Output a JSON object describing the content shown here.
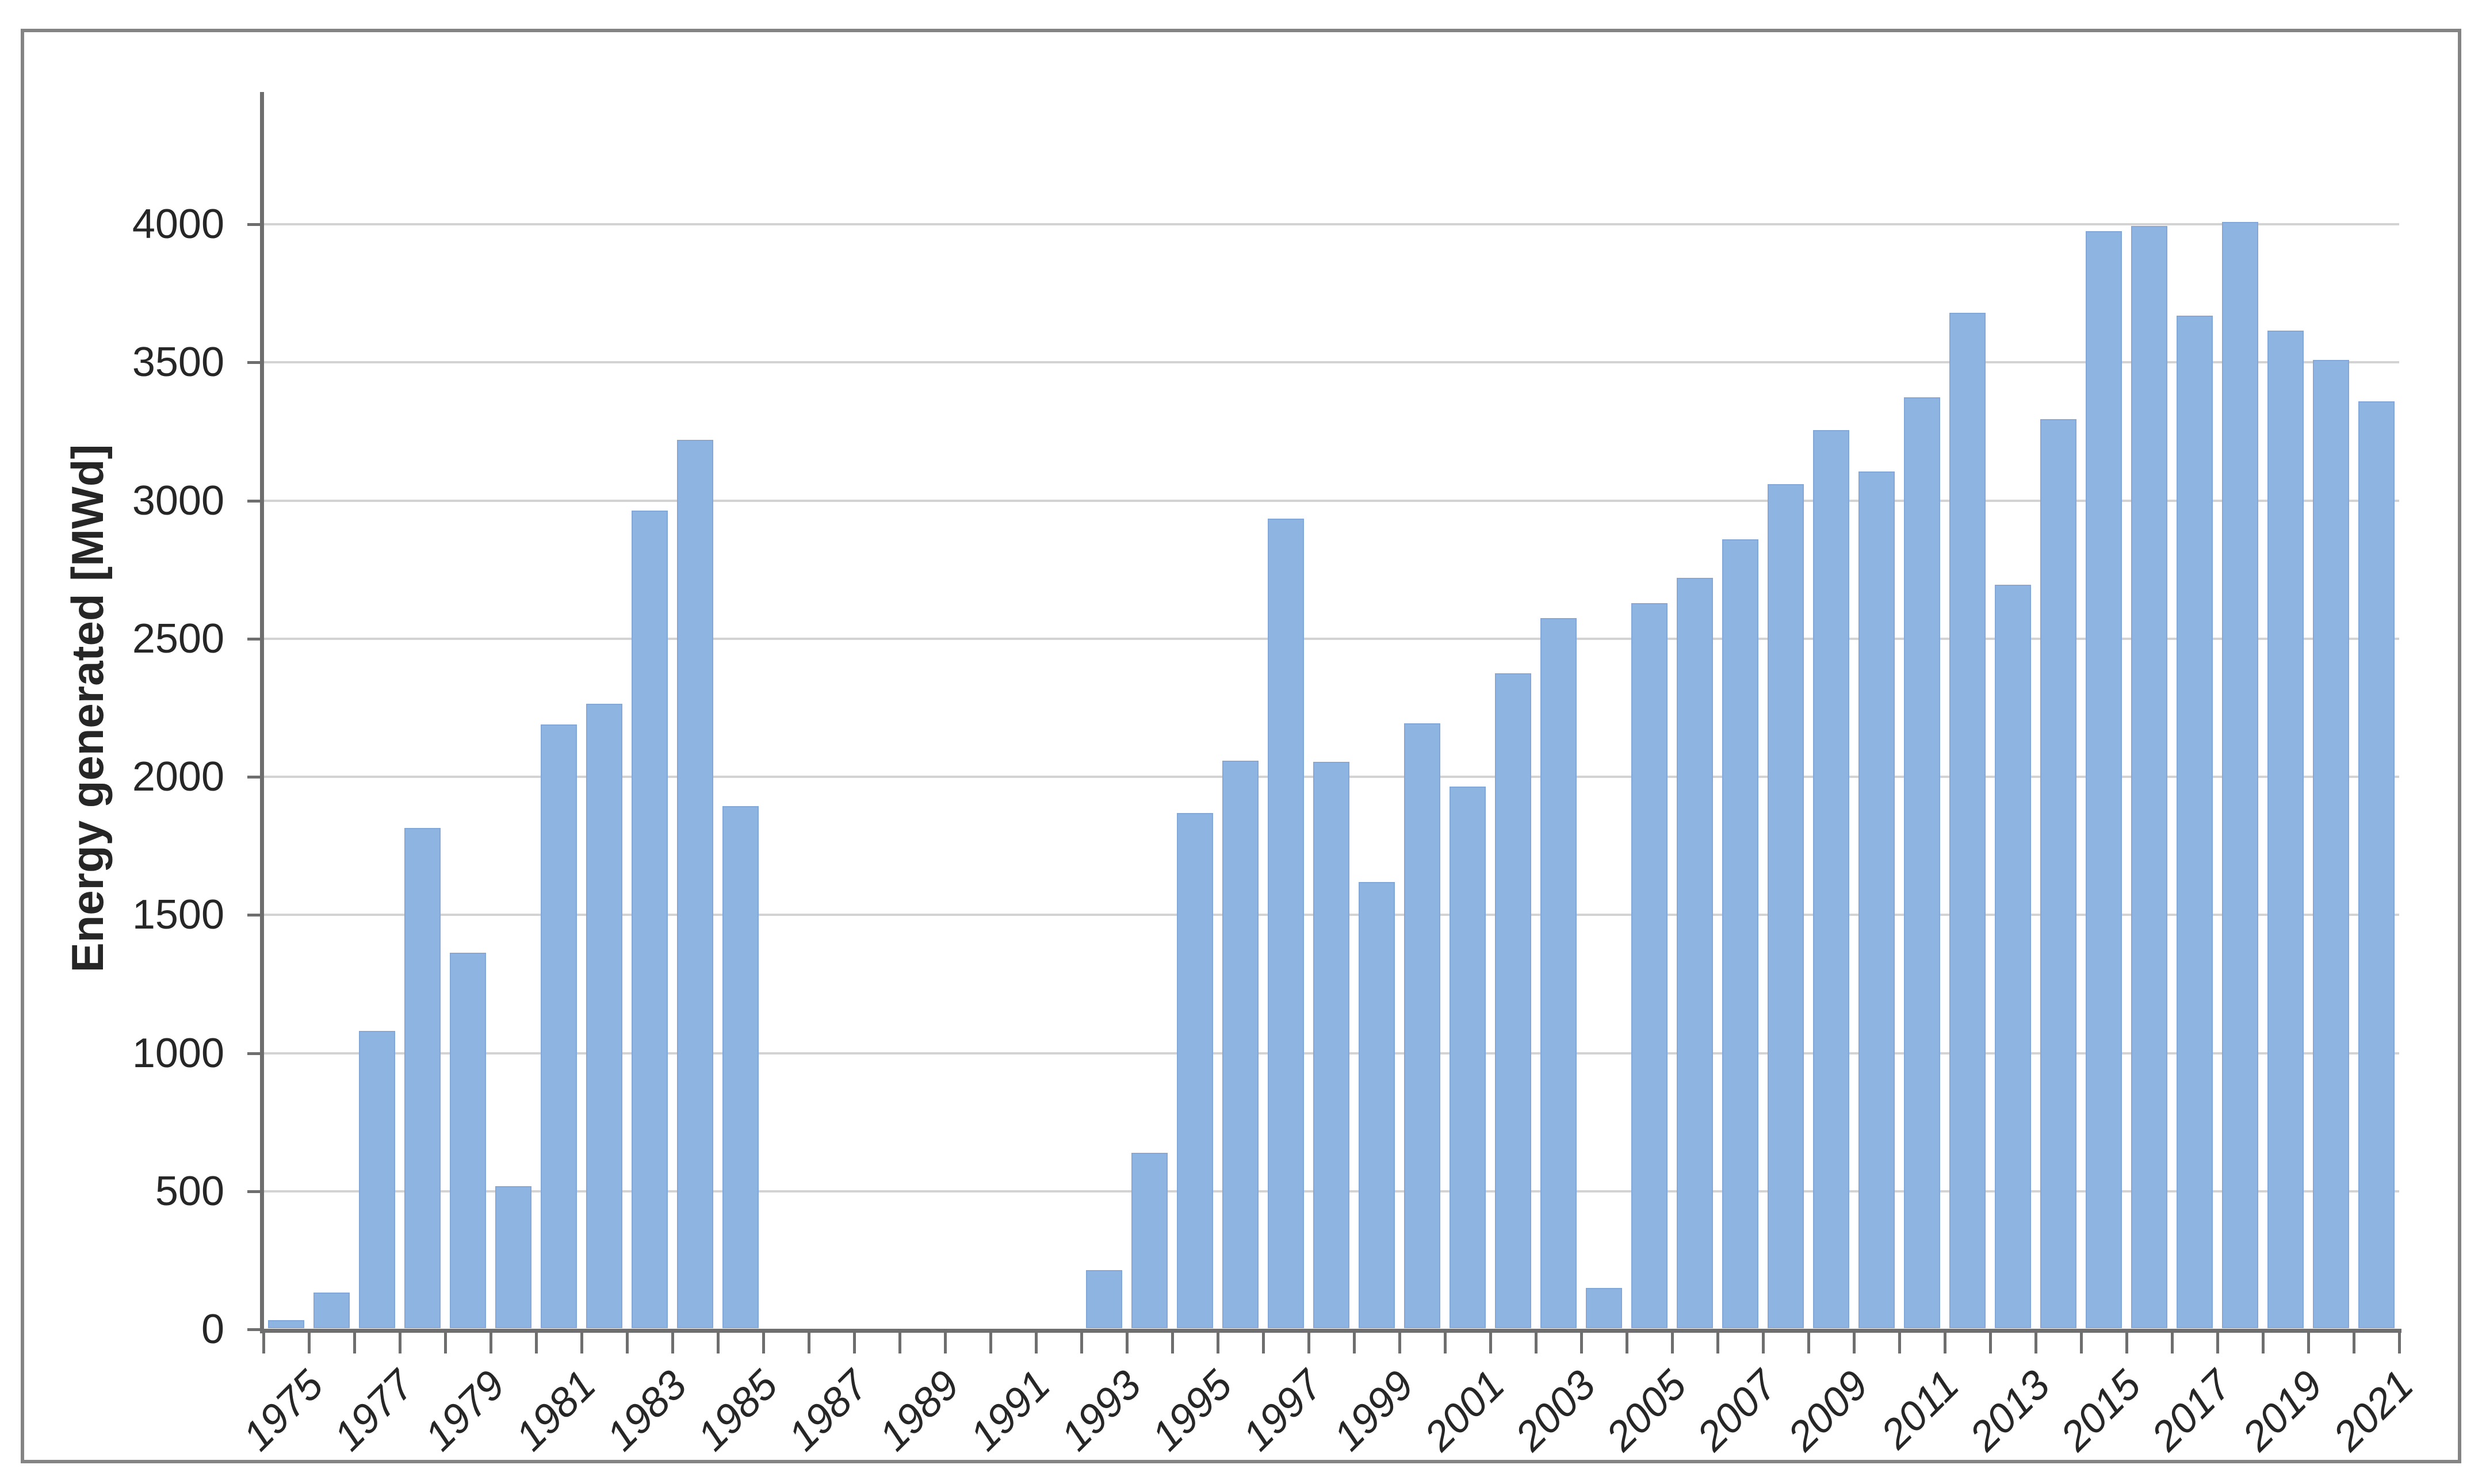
{
  "figure": {
    "frame_color": "#848484",
    "background": "#ffffff",
    "axis_color": "#6e6e6e",
    "gridline_color": "#d3d3d3",
    "text_color": "#262626"
  },
  "chart_data": {
    "type": "bar",
    "title": "",
    "xlabel": "",
    "ylabel": "Energy generated [MWd]",
    "ylim": [
      0,
      4000
    ],
    "ytick_step": 500,
    "ytick_labels": [
      "0",
      "500",
      "1000",
      "1500",
      "2000",
      "2500",
      "3000",
      "3500",
      "4000"
    ],
    "xtick_labels": [
      "1975",
      "1977",
      "1979",
      "1981",
      "1983",
      "1985",
      "1987",
      "1989",
      "1991",
      "1993",
      "1995",
      "1997",
      "1999",
      "2001",
      "2003",
      "2005",
      "2007",
      "2009",
      "2011",
      "2013",
      "2015",
      "2017",
      "2019",
      "2021"
    ],
    "grid": true,
    "legend": false,
    "bar_color": "#8eb4e2",
    "categories": [
      1975,
      1976,
      1977,
      1978,
      1979,
      1980,
      1981,
      1982,
      1983,
      1984,
      1985,
      1986,
      1987,
      1988,
      1989,
      1990,
      1991,
      1992,
      1993,
      1994,
      1995,
      1996,
      1997,
      1998,
      1999,
      2000,
      2001,
      2002,
      2003,
      2004,
      2005,
      2006,
      2007,
      2008,
      2009,
      2010,
      2011,
      2012,
      2013,
      2014,
      2015,
      2016,
      2017,
      2018,
      2019,
      2020,
      2021
    ],
    "values": [
      30,
      130,
      1075,
      1810,
      1360,
      515,
      2185,
      2260,
      2960,
      3215,
      1890,
      0,
      0,
      0,
      0,
      0,
      0,
      0,
      210,
      635,
      1865,
      2055,
      2930,
      2050,
      1615,
      2190,
      1960,
      2370,
      2570,
      145,
      2625,
      2715,
      2855,
      3055,
      3250,
      3100,
      3370,
      3675,
      2690,
      3290,
      3970,
      3990,
      3665,
      4005,
      3610,
      3505,
      3355
    ]
  }
}
